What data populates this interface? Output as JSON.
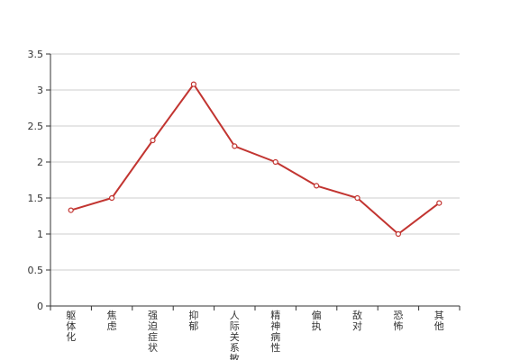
{
  "chart_data": {
    "type": "line",
    "categories": [
      "躯体化",
      "焦虑",
      "强迫症状",
      "抑郁",
      "人际关系敏感",
      "精神病性",
      "偏执",
      "敌对",
      "恐怖",
      "其他"
    ],
    "values": [
      1.33,
      1.5,
      2.3,
      3.08,
      2.22,
      2.0,
      1.67,
      1.5,
      1.0,
      1.43
    ],
    "ylim": [
      0,
      3.5
    ],
    "yticks": [
      "0",
      "0.5",
      "1",
      "1.5",
      "2",
      "2.5",
      "3",
      "3.5"
    ],
    "grid": "horizontal",
    "line_color": "#c23531",
    "title": "",
    "xlabel": "",
    "ylabel": ""
  }
}
